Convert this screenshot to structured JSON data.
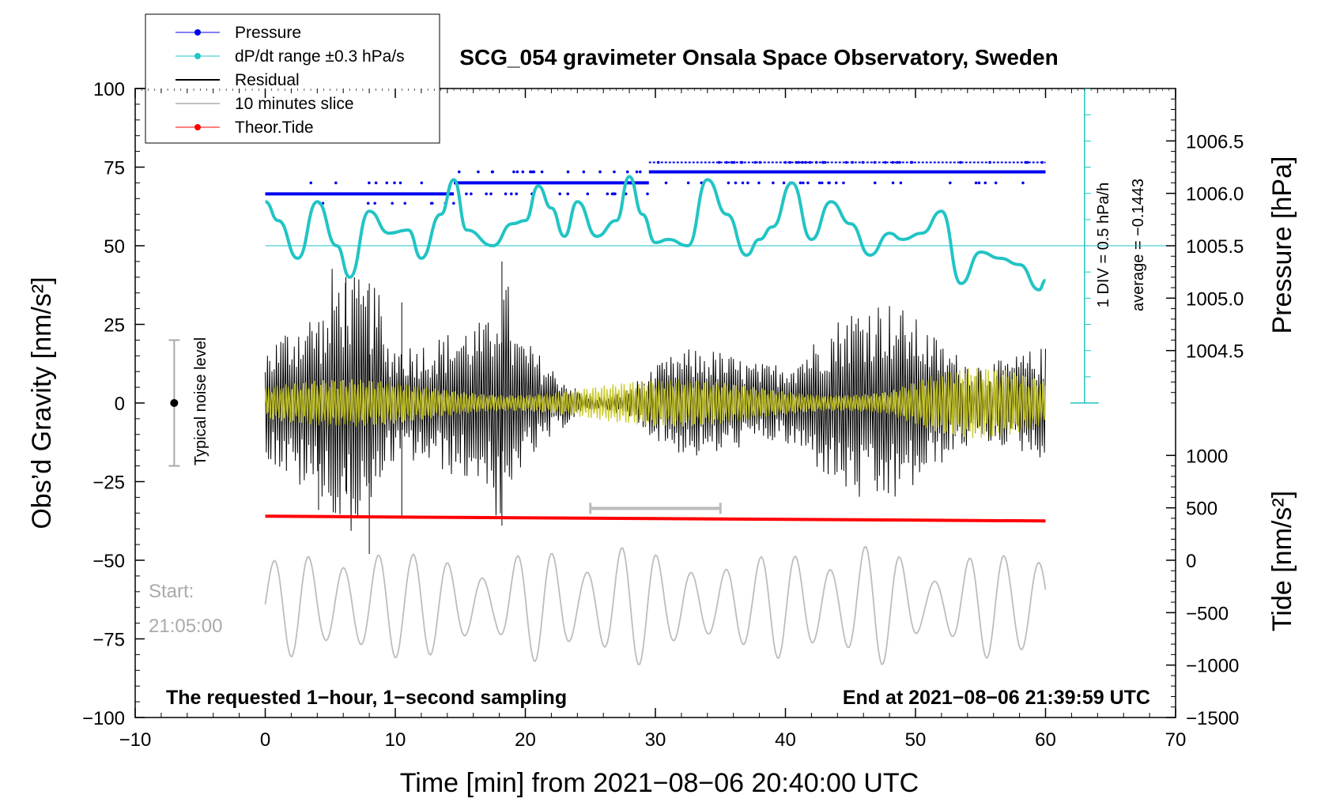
{
  "chart_data": {
    "type": "line",
    "title": "SCG_054 gravimeter Onsala Space Observatory, Sweden",
    "xlabel": "Time [min] from 2021−08−06 20:40:00 UTC",
    "ylabel_left": "Obs’d Gravity [nm/s²]",
    "ylabel_right_pressure": "Pressure [hPa]",
    "ylabel_right_tide": "Tide [nm/s²]",
    "xlim": [
      -10,
      70
    ],
    "ylim": [
      -100,
      100
    ],
    "x_ticks": [
      -10,
      0,
      10,
      20,
      30,
      40,
      50,
      60,
      70
    ],
    "x_tick_labels": [
      "−10",
      "0",
      "10",
      "20",
      "30",
      "40",
      "50",
      "60",
      "70"
    ],
    "y_ticks": [
      -100,
      -75,
      -50,
      -25,
      0,
      25,
      50,
      75,
      100
    ],
    "y_tick_labels": [
      "−100",
      "−75",
      "−50",
      "−25",
      "0",
      "25",
      "50",
      "75",
      "100"
    ],
    "pressure_ticks": [
      1006.5,
      1006.0,
      1005.5,
      1005.0,
      1004.5
    ],
    "pressure_tick_labels": [
      "1006.5",
      "1006.0",
      "1005.5",
      "1005.0",
      "1004.5"
    ],
    "tide_ticks": [
      1000,
      500,
      0,
      -500,
      -1000,
      -1500
    ],
    "tide_tick_labels": [
      "1000",
      "500",
      "0",
      "−500",
      "−1000",
      "−1500"
    ],
    "legend": [
      "Pressure",
      "dP/dt range ±0.3 hPa/s",
      "Residual",
      "10 minutes slice",
      "Theor.Tide"
    ],
    "legend_position": "top-left",
    "annotations": {
      "div_label": "1 DIV = 0.5 hPa/h",
      "average_label": "average = −0.1443",
      "noise_label": "Typical noise level",
      "start_label": "Start:",
      "start_time": "21:05:00",
      "bottom_left_note": "The requested 1−hour, 1−second sampling",
      "bottom_right_note": "End at 2021−08−06 21:39:59 UTC"
    },
    "series": [
      {
        "name": "Pressure",
        "color": "#0000ee",
        "levels_gravity_units": [
          66.5,
          70,
          73.5,
          76.5
        ],
        "steps": [
          [
            0,
            66.5
          ],
          [
            14.5,
            70
          ],
          [
            29.5,
            73.5
          ],
          [
            60,
            73.5
          ]
        ]
      },
      {
        "name": "dP/dt range ±0.3 hPa/s",
        "color": "#22c4c4",
        "x": [
          0,
          1,
          2.5,
          4,
          5.5,
          6.5,
          8,
          9.5,
          11,
          12,
          13.5,
          14.5,
          15.5,
          17.5,
          19,
          20,
          21,
          22,
          23,
          24,
          25.5,
          27,
          28,
          29,
          30,
          31,
          32.5,
          34,
          35.5,
          37,
          38,
          39,
          40.5,
          42,
          43.5,
          45,
          46.5,
          48,
          49,
          50.5,
          52,
          53.5,
          55,
          56.5,
          58,
          59.5,
          60
        ],
        "values": [
          64,
          58,
          46,
          64,
          50,
          40,
          61,
          54,
          55,
          46,
          60,
          71,
          55,
          50,
          57,
          58,
          69,
          62,
          53,
          64,
          53,
          58,
          72,
          60,
          51,
          52,
          50,
          71,
          60,
          47,
          52,
          56,
          70,
          52,
          64,
          57,
          47,
          54,
          52,
          54,
          61,
          38,
          48,
          46,
          44,
          36,
          39
        ]
      },
      {
        "name": "Residual",
        "color": "#000000",
        "amplitude_range": [
          -48,
          45
        ]
      },
      {
        "name": "10 minutes slice",
        "color": "#c0c0c0",
        "slice_x_range": [
          25,
          35
        ]
      },
      {
        "name": "Theor.Tide",
        "color": "#ff0000",
        "x": [
          0,
          60
        ],
        "values": [
          -36,
          -37.5
        ]
      },
      {
        "name": "Noise band",
        "color": "#cccc22"
      }
    ],
    "noise_bar": {
      "x": -7,
      "center": 0,
      "half_range": 20
    }
  }
}
